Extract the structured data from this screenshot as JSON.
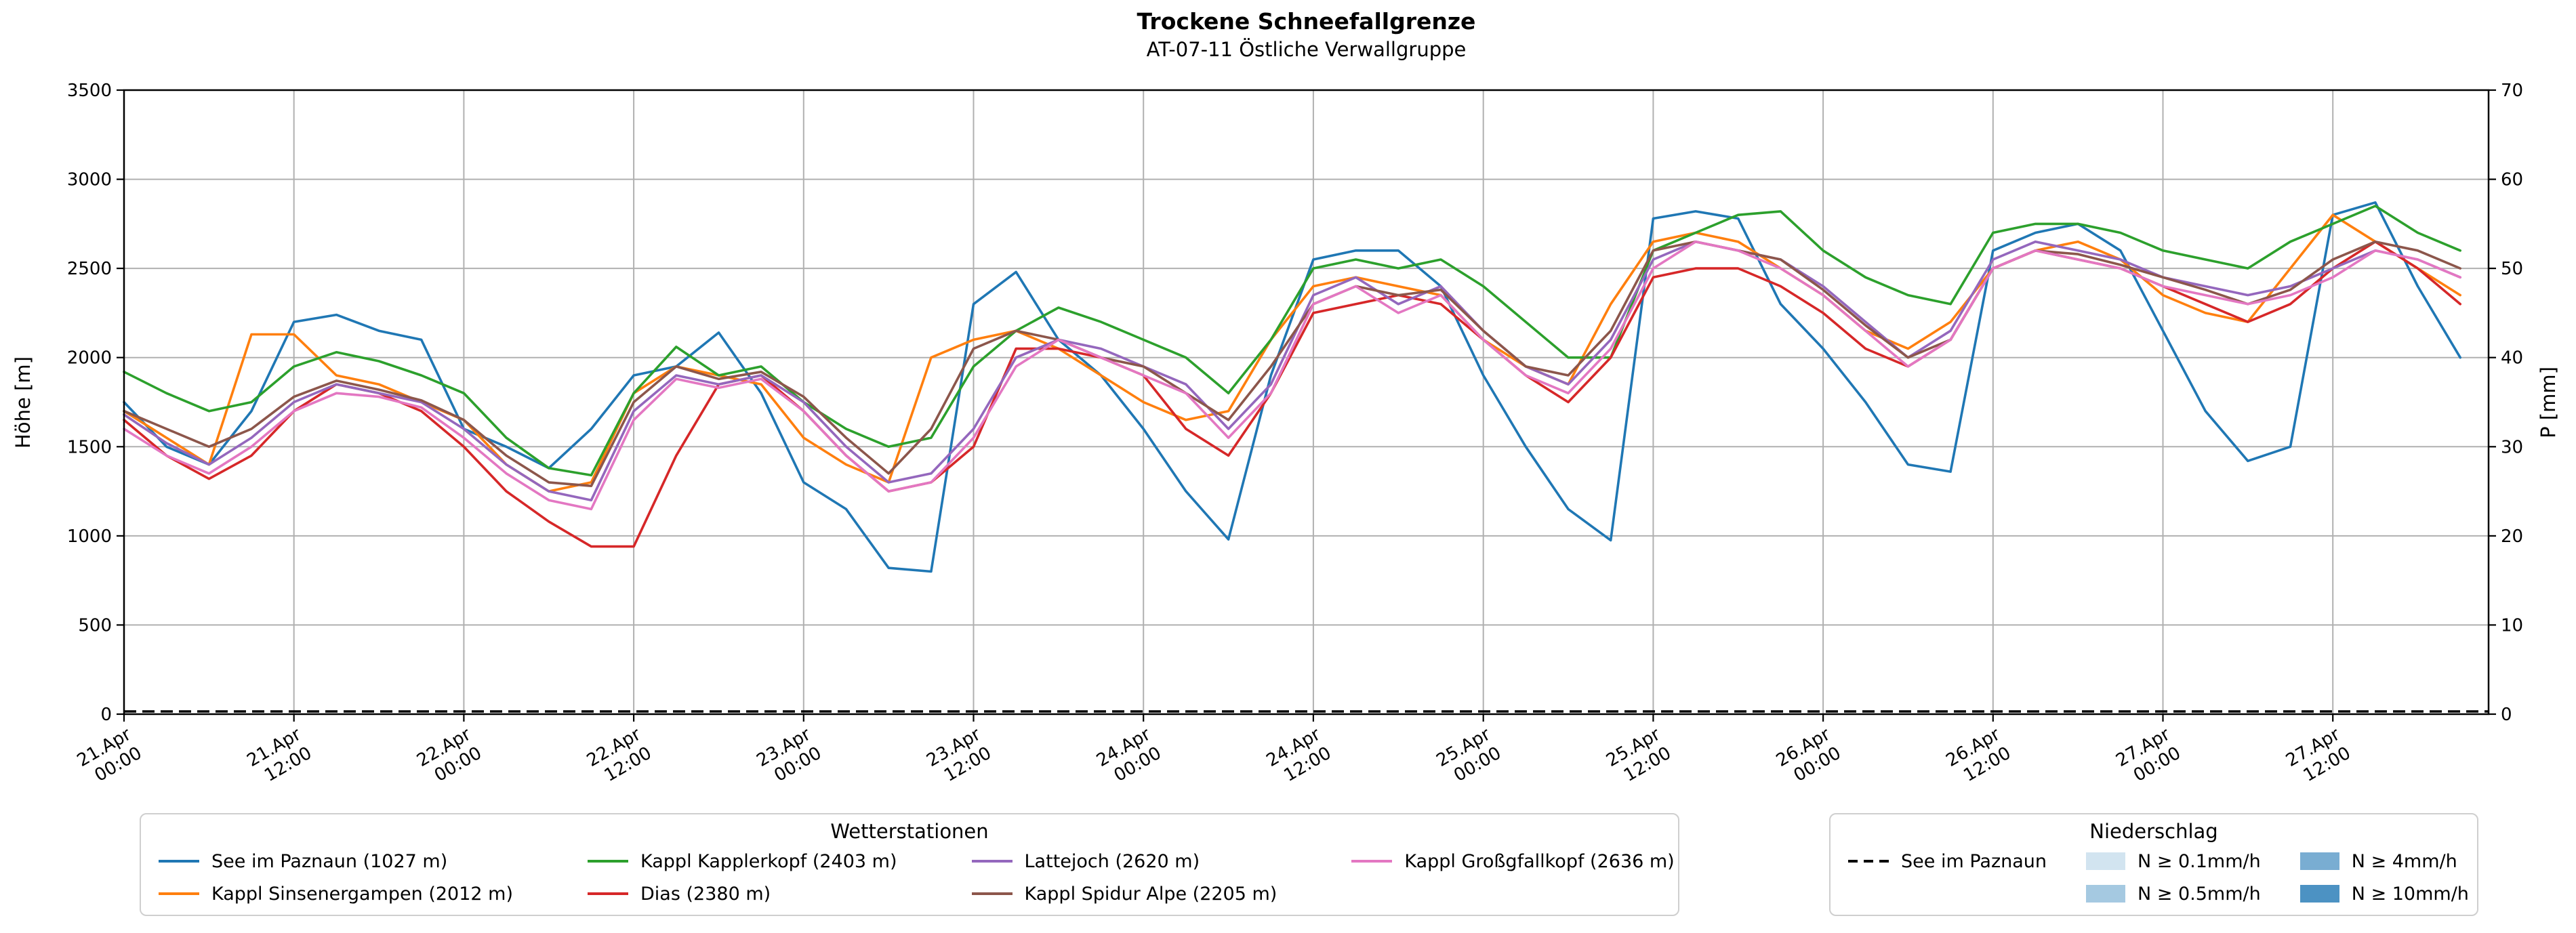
{
  "title": "Trockene Schneefallgrenze",
  "subtitle": "AT-07-11 Östliche Verwallgruppe",
  "chart_data": {
    "type": "line",
    "title": "Trockene Schneefallgrenze",
    "subtitle": "AT-07-11 Östliche Verwallgruppe",
    "ylabel_left": "Höhe [m]",
    "ylabel_right": "P [mm]",
    "ylim_left": [
      0,
      3500
    ],
    "yticks_left": [
      0,
      500,
      1000,
      1500,
      2000,
      2500,
      3000,
      3500
    ],
    "ylim_right": [
      0,
      70
    ],
    "yticks_right": [
      0,
      10,
      20,
      30,
      40,
      50,
      60,
      70
    ],
    "xlim_hours": [
      0,
      167
    ],
    "grid": true,
    "x_tick_hours": [
      0,
      12,
      24,
      36,
      48,
      60,
      72,
      84,
      96,
      108,
      120,
      132,
      144,
      156
    ],
    "x_tick_labels": [
      [
        "21.Apr",
        "00:00"
      ],
      [
        "21.Apr",
        "12:00"
      ],
      [
        "22.Apr",
        "00:00"
      ],
      [
        "22.Apr",
        "12:00"
      ],
      [
        "23.Apr",
        "00:00"
      ],
      [
        "23.Apr",
        "12:00"
      ],
      [
        "24.Apr",
        "00:00"
      ],
      [
        "24.Apr",
        "12:00"
      ],
      [
        "25.Apr",
        "00:00"
      ],
      [
        "25.Apr",
        "12:00"
      ],
      [
        "26.Apr",
        "00:00"
      ],
      [
        "26.Apr",
        "12:00"
      ],
      [
        "27.Apr",
        "00:00"
      ],
      [
        "27.Apr",
        "12:00"
      ]
    ],
    "x_hours": [
      0,
      3,
      6,
      9,
      12,
      15,
      18,
      21,
      24,
      27,
      30,
      33,
      36,
      39,
      42,
      45,
      48,
      51,
      54,
      57,
      60,
      63,
      66,
      69,
      72,
      75,
      78,
      81,
      84,
      87,
      90,
      93,
      96,
      99,
      102,
      105,
      108,
      111,
      114,
      117,
      120,
      123,
      126,
      129,
      132,
      135,
      138,
      141,
      144,
      147,
      150,
      153,
      156,
      159,
      162,
      165
    ],
    "series": [
      {
        "name": "See im Paznaun (1027 m)",
        "color": "#1f77b4",
        "values": [
          1750,
          1500,
          1400,
          1700,
          2200,
          2240,
          2150,
          2100,
          1600,
          1500,
          1380,
          1600,
          1900,
          1950,
          2140,
          1800,
          1300,
          1150,
          820,
          800,
          2300,
          2480,
          2100,
          1900,
          1600,
          1250,
          980,
          1900,
          2550,
          2600,
          2600,
          2400,
          1900,
          1500,
          1150,
          975,
          2780,
          2820,
          2780,
          2300,
          2050,
          1750,
          1400,
          1360,
          2600,
          2700,
          2750,
          2600,
          2150,
          1700,
          1420,
          1500,
          2800,
          2870,
          2400,
          2000
        ]
      },
      {
        "name": "Kappl Sinsenergampen (2012 m)",
        "color": "#ff7f0e",
        "values": [
          1700,
          1550,
          1400,
          2130,
          2130,
          1900,
          1850,
          1750,
          1650,
          1400,
          1250,
          1300,
          1800,
          1950,
          1900,
          1850,
          1550,
          1400,
          1300,
          2000,
          2100,
          2150,
          2050,
          1900,
          1750,
          1650,
          1700,
          2100,
          2400,
          2450,
          2400,
          2350,
          2100,
          1950,
          1850,
          2300,
          2650,
          2700,
          2650,
          2500,
          2350,
          2150,
          2050,
          2200,
          2500,
          2600,
          2650,
          2550,
          2350,
          2250,
          2200,
          2500,
          2800,
          2650,
          2500,
          2350
        ]
      },
      {
        "name": "Kappl Kapplerkopf (2403 m)",
        "color": "#2ca02c",
        "values": [
          1920,
          1800,
          1700,
          1750,
          1950,
          2030,
          1980,
          1900,
          1800,
          1550,
          1380,
          1340,
          1800,
          2060,
          1900,
          1950,
          1750,
          1600,
          1500,
          1550,
          1950,
          2150,
          2280,
          2200,
          2100,
          2000,
          1800,
          2100,
          2500,
          2550,
          2500,
          2550,
          2400,
          2200,
          2000,
          2000,
          2600,
          2700,
          2800,
          2820,
          2600,
          2450,
          2350,
          2300,
          2700,
          2750,
          2750,
          2700,
          2600,
          2550,
          2500,
          2650,
          2750,
          2850,
          2700,
          2600
        ]
      },
      {
        "name": "Dias (2380 m)",
        "color": "#d62728",
        "values": [
          1650,
          1450,
          1320,
          1450,
          1700,
          1850,
          1800,
          1700,
          1500,
          1250,
          1080,
          940,
          940,
          1450,
          1850,
          1900,
          1700,
          1450,
          1250,
          1300,
          1500,
          2050,
          2050,
          2000,
          1900,
          1600,
          1450,
          1800,
          2250,
          2300,
          2350,
          2300,
          2100,
          1900,
          1750,
          2000,
          2450,
          2500,
          2500,
          2400,
          2250,
          2050,
          1950,
          2100,
          2500,
          2600,
          2550,
          2500,
          2400,
          2300,
          2200,
          2300,
          2500,
          2650,
          2500,
          2300
        ]
      },
      {
        "name": "Lattejoch (2620 m)",
        "color": "#9467bd",
        "values": [
          1680,
          1520,
          1400,
          1550,
          1750,
          1850,
          1800,
          1750,
          1600,
          1400,
          1250,
          1200,
          1700,
          1900,
          1850,
          1900,
          1750,
          1500,
          1300,
          1350,
          1600,
          2000,
          2100,
          2050,
          1950,
          1850,
          1600,
          1850,
          2350,
          2450,
          2300,
          2400,
          2150,
          1950,
          1850,
          2100,
          2550,
          2650,
          2600,
          2550,
          2400,
          2200,
          2000,
          2150,
          2550,
          2650,
          2600,
          2550,
          2450,
          2400,
          2350,
          2400,
          2500,
          2600,
          2550,
          2450
        ]
      },
      {
        "name": "Kappl Spidur Alpe (2205 m)",
        "color": "#8c564b",
        "values": [
          1700,
          1600,
          1500,
          1600,
          1780,
          1870,
          1820,
          1760,
          1650,
          1450,
          1300,
          1280,
          1750,
          1950,
          1880,
          1920,
          1780,
          1550,
          1350,
          1600,
          2050,
          2150,
          2100,
          2000,
          1950,
          1800,
          1650,
          1950,
          2300,
          2400,
          2350,
          2380,
          2150,
          1950,
          1900,
          2150,
          2600,
          2650,
          2600,
          2550,
          2380,
          2180,
          2000,
          2100,
          2500,
          2600,
          2580,
          2520,
          2450,
          2380,
          2300,
          2380,
          2550,
          2650,
          2600,
          2500
        ]
      },
      {
        "name": "Kappl Großgfallkopf (2636 m)",
        "color": "#e377c2",
        "values": [
          1600,
          1450,
          1350,
          1500,
          1700,
          1800,
          1780,
          1720,
          1550,
          1350,
          1200,
          1150,
          1650,
          1880,
          1830,
          1880,
          1700,
          1450,
          1250,
          1300,
          1550,
          1950,
          2100,
          2000,
          1900,
          1800,
          1550,
          1800,
          2300,
          2400,
          2250,
          2350,
          2100,
          1900,
          1800,
          2050,
          2500,
          2650,
          2600,
          2500,
          2350,
          2150,
          1950,
          2100,
          2500,
          2600,
          2550,
          2500,
          2400,
          2350,
          2300,
          2350,
          2450,
          2600,
          2550,
          2450
        ]
      }
    ],
    "precip_line": {
      "name": "See im Paznaun",
      "axis": "right",
      "style": "dashed",
      "color": "#000000",
      "constant_value_mm": 0
    }
  },
  "legend_stations": {
    "title": "Wetterstationen",
    "columns": [
      [
        {
          "label": "See im Paznaun (1027 m)",
          "type": "line",
          "color": "#1f77b4"
        },
        {
          "label": "Kappl Sinsenergampen (2012 m)",
          "type": "line",
          "color": "#ff7f0e"
        }
      ],
      [
        {
          "label": "Kappl Kapplerkopf (2403 m)",
          "type": "line",
          "color": "#2ca02c"
        },
        {
          "label": "Dias (2380 m)",
          "type": "line",
          "color": "#d62728"
        }
      ],
      [
        {
          "label": "Lattejoch (2620 m)",
          "type": "line",
          "color": "#9467bd"
        },
        {
          "label": "Kappl Spidur Alpe (2205 m)",
          "type": "line",
          "color": "#8c564b"
        }
      ],
      [
        {
          "label": "Kappl Großgfallkopf (2636 m)",
          "type": "line",
          "color": "#e377c2"
        }
      ]
    ]
  },
  "legend_precip": {
    "title": "Niederschlag",
    "columns": [
      [
        {
          "label": "See im Paznaun",
          "type": "dashed-line",
          "color": "#000000"
        }
      ],
      [
        {
          "label": "N ≥ 0.1mm/h",
          "type": "patch",
          "color": "#d2e4f0"
        },
        {
          "label": "N ≥ 0.5mm/h",
          "type": "patch",
          "color": "#a5c9e1"
        }
      ],
      [
        {
          "label": "N ≥ 4mm/h",
          "type": "patch",
          "color": "#79add2"
        },
        {
          "label": "N ≥ 10mm/h",
          "type": "patch",
          "color": "#4c92c3"
        }
      ]
    ]
  }
}
